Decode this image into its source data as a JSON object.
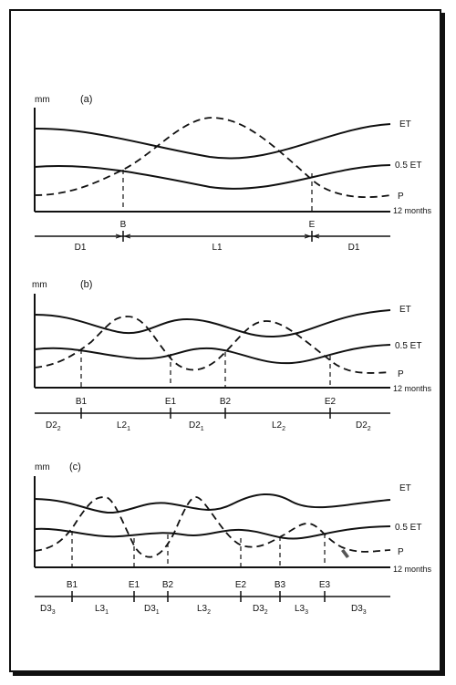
{
  "panels": [
    {
      "id": "a",
      "unit_label": "mm",
      "panel_label": "(a)",
      "curve_labels": {
        "et": "ET",
        "half_et": "0.5 ET",
        "p": "P"
      },
      "axis_label": "12 months",
      "points": [
        "B",
        "E"
      ],
      "segments": [
        "D1",
        "L1",
        "D1"
      ]
    },
    {
      "id": "b",
      "unit_label": "mm",
      "panel_label": "(b)",
      "curve_labels": {
        "et": "ET",
        "half_et": "0.5 ET",
        "p": "P"
      },
      "axis_label": "12 months",
      "points": [
        "B1",
        "E1",
        "B2",
        "E2"
      ],
      "segments": [
        {
          "base": "D2",
          "sub": "2"
        },
        {
          "base": "L2",
          "sub": "1"
        },
        {
          "base": "D2",
          "sub": "1"
        },
        {
          "base": "L2",
          "sub": "2"
        },
        {
          "base": "D2",
          "sub": "2"
        }
      ]
    },
    {
      "id": "c",
      "unit_label": "mm",
      "panel_label": "(c)",
      "curve_labels": {
        "et": "ET",
        "half_et": "0.5 ET",
        "p": "P"
      },
      "axis_label": "12 months",
      "points": [
        "B1",
        "E1",
        "B2",
        "E2",
        "B3",
        "E3"
      ],
      "segments": [
        {
          "base": "D3",
          "sub": "3"
        },
        {
          "base": "L3",
          "sub": "1"
        },
        {
          "base": "D3",
          "sub": "1"
        },
        {
          "base": "L3",
          "sub": "2"
        },
        {
          "base": "D3",
          "sub": "2"
        },
        {
          "base": "L3",
          "sub": "3"
        },
        {
          "base": "D3",
          "sub": "3"
        }
      ]
    }
  ]
}
